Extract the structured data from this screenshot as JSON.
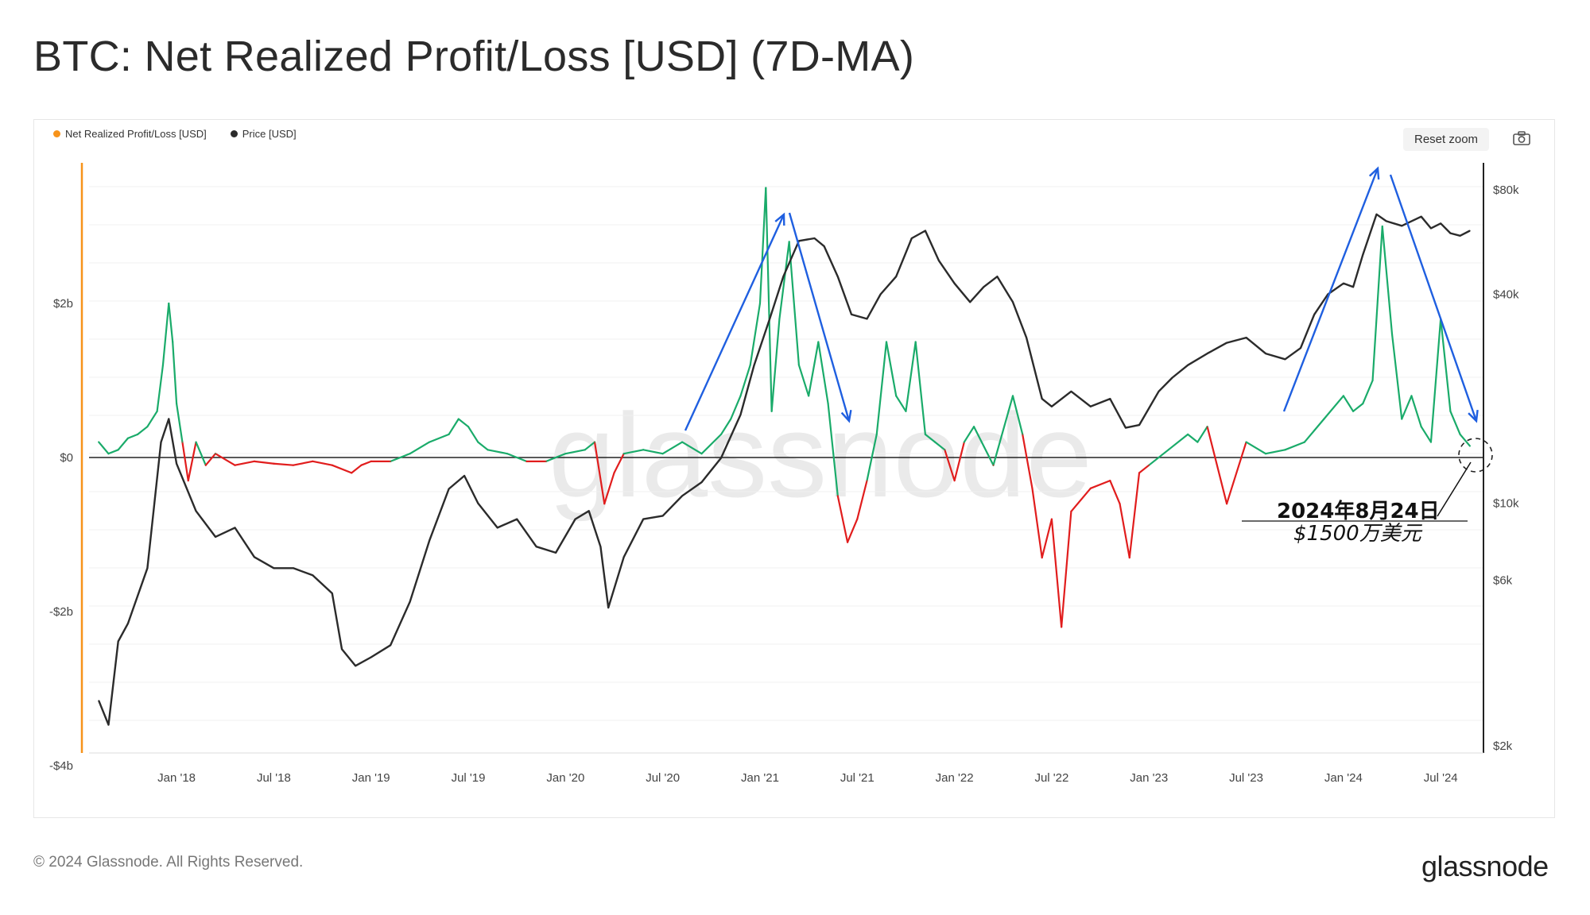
{
  "title": "BTC: Net Realized Profit/Loss [USD] (7D-MA)",
  "legend": [
    {
      "label": "Net Realized Profit/Loss [USD]",
      "color": "#f7931a"
    },
    {
      "label": "Price [USD]",
      "color": "#2b2b2b"
    }
  ],
  "reset_zoom_label": "Reset zoom",
  "camera_icon": "camera-icon",
  "watermark": "glassnode",
  "footer": {
    "copyright": "© 2024 Glassnode. All Rights Reserved.",
    "logo": "glassnode"
  },
  "annotation": {
    "date": "2024年8月24日",
    "value": "$1500万美元"
  },
  "chart_data": {
    "type": "line",
    "x_tick_labels": [
      "Jan '18",
      "Jul '18",
      "Jan '19",
      "Jul '19",
      "Jan '20",
      "Jul '20",
      "Jan '21",
      "Jul '21",
      "Jan '22",
      "Jul '22",
      "Jan '23",
      "Jul '23",
      "Jan '24",
      "Jul '24"
    ],
    "left_axis": {
      "labels": [
        "$2b",
        "$0",
        "-$2b",
        "-$4b"
      ],
      "values": [
        2,
        0,
        -2,
        -4
      ],
      "unit": "USD billions"
    },
    "right_axis": {
      "labels": [
        "$80k",
        "$40k",
        "$10k",
        "$6k",
        "$2k"
      ],
      "values": [
        80000,
        40000,
        10000,
        6000,
        2000
      ],
      "scale": "log"
    },
    "colors": {
      "profit": "#1aab6a",
      "loss": "#e11d1d",
      "price": "#2b2b2b",
      "arrows": "#1f5fe0"
    },
    "series": [
      {
        "name": "Net Realized Profit/Loss [USD]",
        "unit": "USD billions",
        "x": [
          2017.6,
          2017.65,
          2017.7,
          2017.75,
          2017.8,
          2017.85,
          2017.9,
          2017.93,
          2017.96,
          2017.98,
          2018.0,
          2018.03,
          2018.06,
          2018.1,
          2018.15,
          2018.2,
          2018.3,
          2018.4,
          2018.5,
          2018.6,
          2018.7,
          2018.8,
          2018.9,
          2018.95,
          2019.0,
          2019.1,
          2019.2,
          2019.3,
          2019.4,
          2019.45,
          2019.5,
          2019.55,
          2019.6,
          2019.7,
          2019.8,
          2019.9,
          2020.0,
          2020.1,
          2020.15,
          2020.2,
          2020.25,
          2020.3,
          2020.4,
          2020.5,
          2020.6,
          2020.7,
          2020.8,
          2020.85,
          2020.9,
          2020.95,
          2021.0,
          2021.03,
          2021.06,
          2021.1,
          2021.15,
          2021.2,
          2021.25,
          2021.3,
          2021.35,
          2021.4,
          2021.45,
          2021.5,
          2021.55,
          2021.6,
          2021.65,
          2021.7,
          2021.75,
          2021.8,
          2021.85,
          2021.9,
          2021.95,
          2022.0,
          2022.05,
          2022.1,
          2022.2,
          2022.3,
          2022.35,
          2022.4,
          2022.45,
          2022.5,
          2022.55,
          2022.6,
          2022.7,
          2022.8,
          2022.85,
          2022.9,
          2022.95,
          2023.0,
          2023.1,
          2023.2,
          2023.25,
          2023.3,
          2023.4,
          2023.5,
          2023.6,
          2023.7,
          2023.8,
          2023.9,
          2024.0,
          2024.05,
          2024.1,
          2024.15,
          2024.2,
          2024.25,
          2024.3,
          2024.35,
          2024.4,
          2024.45,
          2024.5,
          2024.55,
          2024.6,
          2024.65
        ],
        "y": [
          0.2,
          0.05,
          0.1,
          0.25,
          0.3,
          0.4,
          0.6,
          1.2,
          2.0,
          1.5,
          0.7,
          0.2,
          -0.3,
          0.2,
          -0.1,
          0.05,
          -0.1,
          -0.05,
          -0.08,
          -0.1,
          -0.05,
          -0.1,
          -0.2,
          -0.1,
          -0.05,
          -0.05,
          0.05,
          0.2,
          0.3,
          0.5,
          0.4,
          0.2,
          0.1,
          0.05,
          -0.05,
          -0.05,
          0.05,
          0.1,
          0.2,
          -0.6,
          -0.2,
          0.05,
          0.1,
          0.05,
          0.2,
          0.05,
          0.3,
          0.5,
          0.8,
          1.2,
          2.0,
          3.5,
          0.6,
          1.8,
          2.8,
          1.2,
          0.8,
          1.5,
          0.7,
          -0.5,
          -1.1,
          -0.8,
          -0.3,
          0.3,
          1.5,
          0.8,
          0.6,
          1.5,
          0.3,
          0.2,
          0.1,
          -0.3,
          0.2,
          0.4,
          -0.1,
          0.8,
          0.3,
          -0.4,
          -1.3,
          -0.8,
          -2.2,
          -0.7,
          -0.4,
          -0.3,
          -0.6,
          -1.3,
          -0.2,
          -0.1,
          0.1,
          0.3,
          0.2,
          0.4,
          -0.6,
          0.2,
          0.05,
          0.1,
          0.2,
          0.5,
          0.8,
          0.6,
          0.7,
          1.0,
          3.0,
          1.6,
          0.5,
          0.8,
          0.4,
          0.2,
          1.8,
          0.6,
          0.3,
          0.15
        ]
      },
      {
        "name": "Price [USD]",
        "unit": "USD",
        "x": [
          2017.6,
          2017.65,
          2017.7,
          2017.75,
          2017.85,
          2017.92,
          2017.96,
          2018.0,
          2018.1,
          2018.2,
          2018.3,
          2018.4,
          2018.5,
          2018.6,
          2018.7,
          2018.8,
          2018.85,
          2018.92,
          2019.0,
          2019.1,
          2019.2,
          2019.3,
          2019.4,
          2019.48,
          2019.55,
          2019.65,
          2019.75,
          2019.85,
          2019.95,
          2020.05,
          2020.12,
          2020.18,
          2020.22,
          2020.3,
          2020.4,
          2020.5,
          2020.6,
          2020.7,
          2020.8,
          2020.9,
          2020.97,
          2021.05,
          2021.12,
          2021.2,
          2021.28,
          2021.33,
          2021.4,
          2021.47,
          2021.55,
          2021.62,
          2021.7,
          2021.78,
          2021.85,
          2021.92,
          2022.0,
          2022.08,
          2022.15,
          2022.22,
          2022.3,
          2022.37,
          2022.45,
          2022.5,
          2022.6,
          2022.7,
          2022.8,
          2022.88,
          2022.95,
          2023.05,
          2023.12,
          2023.2,
          2023.3,
          2023.4,
          2023.5,
          2023.6,
          2023.7,
          2023.78,
          2023.85,
          2023.92,
          2024.0,
          2024.05,
          2024.1,
          2024.17,
          2024.22,
          2024.3,
          2024.4,
          2024.45,
          2024.5,
          2024.55,
          2024.6,
          2024.65
        ],
        "y": [
          2700,
          2300,
          4000,
          4500,
          6500,
          15000,
          17500,
          13000,
          9500,
          8000,
          8500,
          7000,
          6500,
          6500,
          6200,
          5500,
          3800,
          3400,
          3600,
          3900,
          5200,
          7800,
          11000,
          12000,
          10000,
          8500,
          9000,
          7500,
          7200,
          9000,
          9500,
          7500,
          5000,
          7000,
          9000,
          9200,
          10500,
          11500,
          13500,
          18000,
          25000,
          34000,
          45000,
          57000,
          58000,
          55000,
          45000,
          35000,
          34000,
          40000,
          45000,
          58000,
          61000,
          50000,
          43000,
          38000,
          42000,
          45000,
          38000,
          30000,
          20000,
          19000,
          21000,
          19000,
          20000,
          16500,
          16800,
          21000,
          23000,
          25000,
          27000,
          29000,
          30000,
          27000,
          26000,
          28000,
          35000,
          40000,
          43000,
          42000,
          52000,
          68000,
          65000,
          63000,
          67000,
          62000,
          64000,
          60000,
          59000,
          61000
        ]
      }
    ]
  }
}
